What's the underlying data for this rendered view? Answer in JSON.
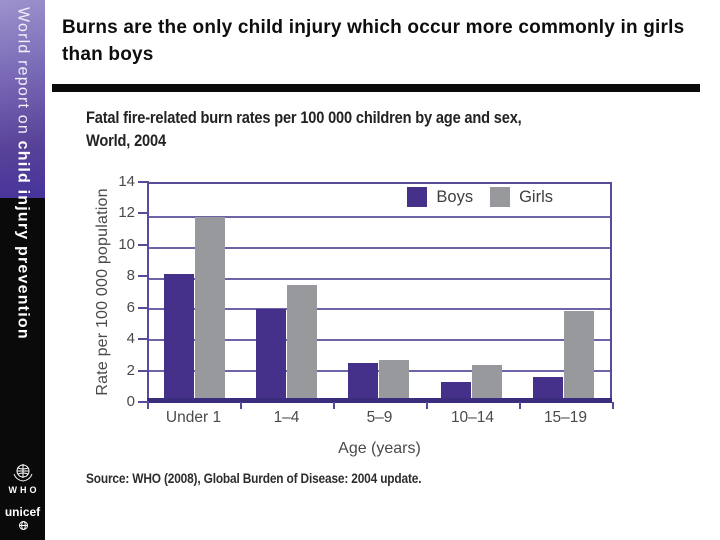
{
  "sidebar": {
    "spine_text_regular": "World report on ",
    "spine_text_bold": "child injury prevention",
    "who_label": "WHO",
    "unicef_label": "unicef"
  },
  "header": {
    "title": "Burns are the only child injury which occur more commonly in girls than boys"
  },
  "chart_data": {
    "type": "bar",
    "title": "Fatal fire-related burn rates per 100 000 children by age and sex, World, 2004",
    "title_lines": [
      "Fatal fire-related burn rates per 100 000 children by age and sex,",
      "World, 2004"
    ],
    "categories": [
      "Under 1",
      "1–4",
      "5–9",
      "10–14",
      "15–19"
    ],
    "series": [
      {
        "name": "Boys",
        "color": "#453189",
        "values": [
          8.3,
          6.0,
          2.5,
          1.3,
          1.6
        ]
      },
      {
        "name": "Girls",
        "color": "#98999d",
        "values": [
          12.0,
          7.6,
          2.7,
          2.4,
          5.9
        ]
      }
    ],
    "xlabel": "Age (years)",
    "ylabel": "Rate per 100 000 population",
    "ylim": [
      0,
      14
    ],
    "yticks": [
      0,
      2,
      4,
      6,
      8,
      10,
      12,
      14
    ],
    "gridlines": [
      2,
      4,
      6,
      8,
      10,
      12
    ],
    "grid_on": true,
    "legend_position": "top-right",
    "source": "Source: WHO (2008), Global Burden of Disease: 2004 update.",
    "colors": {
      "axis": "#3b2d7e",
      "frame": "#5a4a9a",
      "grid": "#6b64a6",
      "tick_text": "#4a4a4a"
    }
  }
}
